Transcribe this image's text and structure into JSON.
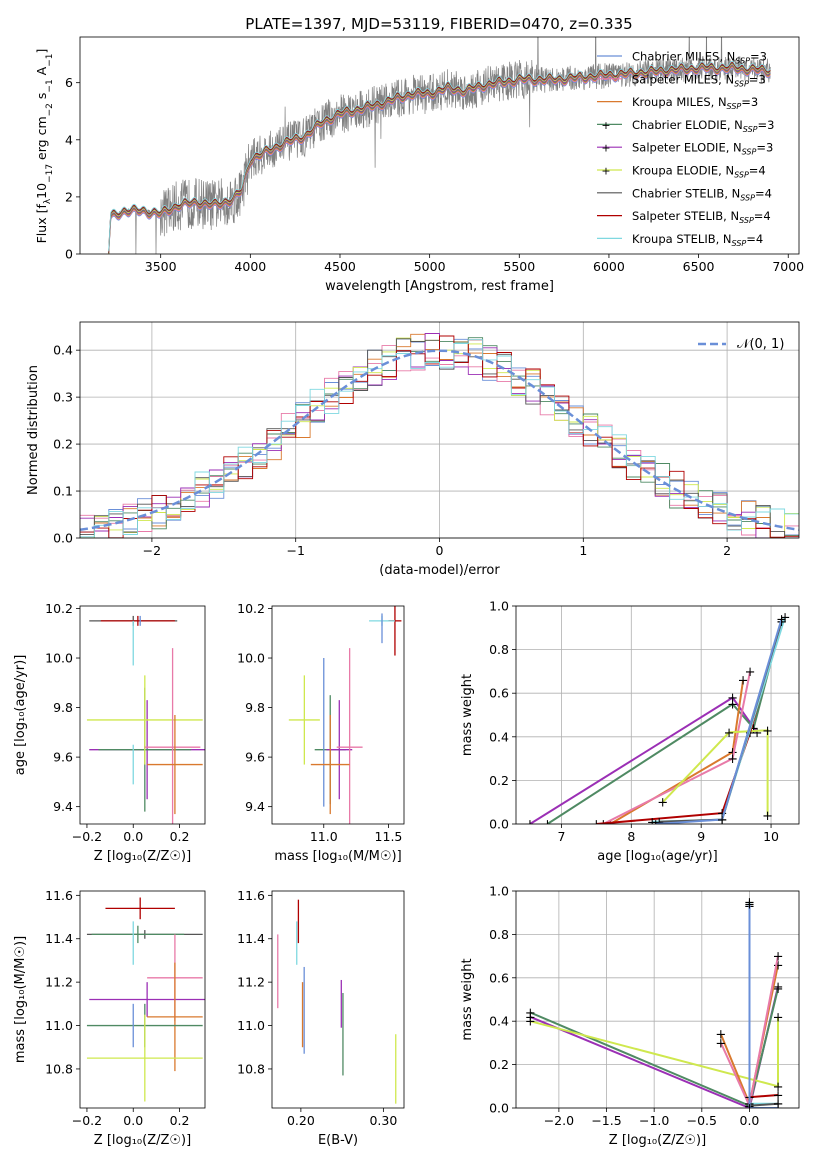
{
  "title": "PLATE=1397, MJD=53119, FIBERID=0470, z=0.335",
  "legend_models": [
    {
      "name": "Chabrier MILES",
      "nssp": "3",
      "color": "#6a8fd8"
    },
    {
      "name": "Salpeter MILES",
      "nssp": "3",
      "color": "#e87aa8"
    },
    {
      "name": "Kroupa MILES",
      "nssp": "3",
      "color": "#d9792e"
    },
    {
      "name": "Chabrier ELODIE",
      "nssp": "3",
      "color": "#4f8a63"
    },
    {
      "name": "Salpeter ELODIE",
      "nssp": "3",
      "color": "#9b2fb5"
    },
    {
      "name": "Kroupa ELODIE",
      "nssp": "4",
      "color": "#cfe84e"
    },
    {
      "name": "Chabrier STELIB",
      "nssp": "4",
      "color": "#555555"
    },
    {
      "name": "Salpeter STELIB",
      "nssp": "4",
      "color": "#b00000"
    },
    {
      "name": "Kroupa STELIB",
      "nssp": "4",
      "color": "#7fd8e0"
    }
  ],
  "chart_data": [
    {
      "id": "spectrum",
      "type": "line",
      "xlabel": "wavelength [Angstrom, rest frame]",
      "ylabel_parts": {
        "a": "Flux [f",
        "b": "λ",
        "c": "10",
        "d": "−17",
        "e": " erg cm",
        "f": "−2",
        "g": " s",
        "h": "−1",
        "i": " A",
        "j": "−1",
        "k": "]"
      },
      "xlim": [
        3050,
        7060
      ],
      "ylim": [
        0,
        7.6
      ],
      "xticks": [
        3500,
        4000,
        4500,
        5000,
        5500,
        6000,
        6500,
        7000
      ],
      "yticks": [
        0,
        2,
        4,
        6
      ],
      "data_color": "#808080",
      "continuum": [
        [
          3210,
          0
        ],
        [
          3220,
          1.3
        ],
        [
          3300,
          1.5
        ],
        [
          3400,
          1.5
        ],
        [
          3500,
          1.4
        ],
        [
          3600,
          1.7
        ],
        [
          3700,
          1.8
        ],
        [
          3800,
          1.7
        ],
        [
          3900,
          1.9
        ],
        [
          3950,
          2.2
        ],
        [
          4000,
          3.3
        ],
        [
          4100,
          3.6
        ],
        [
          4200,
          3.9
        ],
        [
          4300,
          4.1
        ],
        [
          4400,
          4.6
        ],
        [
          4500,
          4.9
        ],
        [
          4700,
          5.2
        ],
        [
          4900,
          5.6
        ],
        [
          5000,
          5.6
        ],
        [
          5100,
          5.8
        ],
        [
          5200,
          5.7
        ],
        [
          5300,
          5.9
        ],
        [
          5500,
          6.1
        ],
        [
          5700,
          6.1
        ],
        [
          5900,
          6.2
        ],
        [
          6100,
          6.3
        ],
        [
          6300,
          6.4
        ],
        [
          6500,
          6.5
        ],
        [
          6700,
          6.5
        ],
        [
          6900,
          6.4
        ]
      ]
    },
    {
      "id": "residuals",
      "type": "step",
      "xlabel": "(data-model)/error",
      "ylabel": "Normed distribution",
      "xlim": [
        -2.5,
        2.5
      ],
      "ylim": [
        0,
        0.46
      ],
      "xticks": [
        -2,
        -1,
        0,
        1,
        2
      ],
      "yticks": [
        0,
        0.1,
        0.2,
        0.3,
        0.4
      ],
      "legend": "𝒩(0, 1)"
    },
    {
      "id": "z_age",
      "type": "errorbar",
      "xlabel": "Z [log₁₀(Z/Z☉)]",
      "ylabel": "age  [log₁₀(age/yr)]",
      "xlim": [
        -0.23,
        0.31
      ],
      "ylim": [
        9.33,
        10.21
      ],
      "xticks": [
        -0.2,
        0.0,
        0.2
      ],
      "yticks": [
        9.4,
        9.6,
        9.8,
        10.0,
        10.2
      ],
      "points": [
        {
          "x": 0.0,
          "y": 10.15,
          "xerr": 0.19,
          "yerr": 0.02,
          "m": 6
        },
        {
          "x": 0.02,
          "y": 10.15,
          "xerr": 0.16,
          "yerr": 0.02,
          "m": 7
        },
        {
          "x": 0.03,
          "y": 10.15,
          "xerr": 0.0,
          "yerr": 0.02,
          "m": 0
        },
        {
          "x": 0.0,
          "y": 10.06,
          "xerr": 0.0,
          "yerr": 0.09,
          "m": 8
        },
        {
          "x": 0.06,
          "y": 9.63,
          "xerr": 0.25,
          "yerr": 0.2,
          "m": 4
        },
        {
          "x": 0.05,
          "y": 9.63,
          "xerr": 0.2,
          "yerr": 0.25,
          "m": 3
        },
        {
          "x": 0.05,
          "y": 9.75,
          "xerr": 0.25,
          "yerr": 0.18,
          "m": 5
        },
        {
          "x": 0.17,
          "y": 9.64,
          "xerr": 0.12,
          "yerr": 0.4,
          "m": 1
        },
        {
          "x": 0.18,
          "y": 9.57,
          "xerr": 0.12,
          "yerr": 0.2,
          "m": 2
        },
        {
          "x": 0.0,
          "y": 9.57,
          "xerr": 0.0,
          "yerr": 0.08,
          "m": 8
        }
      ]
    },
    {
      "id": "mass_age",
      "type": "errorbar",
      "xlabel": "mass [log₁₀(M/M☉)]",
      "ylabel": "",
      "xlim": [
        10.6,
        11.62
      ],
      "ylim": [
        9.33,
        10.21
      ],
      "xticks": [
        11.0,
        11.5
      ],
      "yticks": [
        9.4,
        9.6,
        9.8,
        10.0,
        10.2
      ],
      "points": [
        {
          "x": 11.55,
          "y": 10.15,
          "xerr": 0.05,
          "yerr": 0.14,
          "m": 7
        },
        {
          "x": 11.45,
          "y": 10.15,
          "xerr": 0.1,
          "yerr": 0.02,
          "m": 8
        },
        {
          "x": 11.45,
          "y": 10.12,
          "xerr": 0.0,
          "yerr": 0.06,
          "m": 0
        },
        {
          "x": 10.85,
          "y": 9.75,
          "xerr": 0.12,
          "yerr": 0.18,
          "m": 5
        },
        {
          "x": 11.05,
          "y": 9.63,
          "xerr": 0.12,
          "yerr": 0.22,
          "m": 3
        },
        {
          "x": 11.0,
          "y": 9.7,
          "xerr": 0.0,
          "yerr": 0.3,
          "m": 0
        },
        {
          "x": 11.12,
          "y": 9.63,
          "xerr": 0.1,
          "yerr": 0.2,
          "m": 4
        },
        {
          "x": 11.2,
          "y": 9.64,
          "xerr": 0.1,
          "yerr": 0.4,
          "m": 1
        },
        {
          "x": 11.05,
          "y": 9.57,
          "xerr": 0.15,
          "yerr": 0.2,
          "m": 2
        }
      ]
    },
    {
      "id": "age_weight",
      "type": "line",
      "xlabel": "age  [log₁₀(age/yr)]",
      "ylabel": "mass weight",
      "xlim": [
        6.35,
        10.4
      ],
      "ylim": [
        0,
        1.0
      ],
      "xticks": [
        7,
        8,
        9,
        10
      ],
      "yticks": [
        0.0,
        0.2,
        0.4,
        0.6,
        0.8,
        1.0
      ],
      "series": [
        {
          "m": 4,
          "points": [
            [
              6.55,
              0.0
            ],
            [
              9.45,
              0.58
            ],
            [
              9.8,
              0.42
            ]
          ]
        },
        {
          "m": 3,
          "points": [
            [
              6.8,
              0.0
            ],
            [
              9.45,
              0.55
            ],
            [
              9.75,
              0.44
            ],
            [
              10.15,
              0.93
            ]
          ]
        },
        {
          "m": 2,
          "points": [
            [
              7.7,
              0.0
            ],
            [
              9.45,
              0.33
            ],
            [
              9.6,
              0.66
            ]
          ]
        },
        {
          "m": 1,
          "points": [
            [
              7.6,
              0.0
            ],
            [
              9.45,
              0.3
            ],
            [
              9.7,
              0.7
            ]
          ]
        },
        {
          "m": 5,
          "points": [
            [
              8.45,
              0.1
            ],
            [
              9.4,
              0.42
            ],
            [
              9.95,
              0.43
            ],
            [
              9.95,
              0.04
            ]
          ]
        },
        {
          "m": 7,
          "points": [
            [
              7.5,
              0.0
            ],
            [
              9.3,
              0.05
            ],
            [
              9.7,
              0.42
            ],
            [
              10.15,
              0.93
            ]
          ]
        },
        {
          "m": 8,
          "points": [
            [
              8.3,
              0.01
            ],
            [
              9.3,
              0.02
            ],
            [
              10.2,
              0.95
            ]
          ]
        },
        {
          "m": 6,
          "points": [
            [
              8.4,
              0.01
            ],
            [
              9.3,
              0.02
            ],
            [
              10.15,
              0.93
            ]
          ]
        },
        {
          "m": 0,
          "points": [
            [
              8.35,
              0.0
            ],
            [
              9.3,
              0.02
            ],
            [
              10.15,
              0.94
            ]
          ]
        }
      ]
    },
    {
      "id": "z_mass",
      "type": "errorbar",
      "xlabel": "Z [log₁₀(Z/Z☉)]",
      "ylabel": "mass [log₁₀(M/M☉)]",
      "xlim": [
        -0.23,
        0.31
      ],
      "ylim": [
        10.62,
        11.62
      ],
      "xticks": [
        -0.2,
        0.0,
        0.2
      ],
      "yticks": [
        10.8,
        11.0,
        11.2,
        11.4,
        11.6
      ],
      "points": [
        {
          "x": 0.03,
          "y": 11.54,
          "xerr": 0.15,
          "yerr": 0.05,
          "m": 7
        },
        {
          "x": 0.05,
          "y": 11.42,
          "xerr": 0.25,
          "yerr": 0.02,
          "m": 6
        },
        {
          "x": 0.02,
          "y": 11.42,
          "xerr": 0.2,
          "yerr": 0.04,
          "m": 3
        },
        {
          "x": 0.0,
          "y": 11.38,
          "xerr": 0.0,
          "yerr": 0.1,
          "m": 8
        },
        {
          "x": 0.18,
          "y": 11.22,
          "xerr": 0.12,
          "yerr": 0.2,
          "m": 1
        },
        {
          "x": 0.06,
          "y": 11.12,
          "xerr": 0.25,
          "yerr": 0.08,
          "m": 4
        },
        {
          "x": 0.18,
          "y": 11.04,
          "xerr": 0.12,
          "yerr": 0.25,
          "m": 2
        },
        {
          "x": 0.05,
          "y": 11.0,
          "xerr": 0.25,
          "yerr": 0.1,
          "m": 3
        },
        {
          "x": 0.05,
          "y": 10.85,
          "xerr": 0.25,
          "yerr": 0.2,
          "m": 5
        },
        {
          "x": 0.0,
          "y": 11.0,
          "xerr": 0.0,
          "yerr": 0.1,
          "m": 0
        }
      ]
    },
    {
      "id": "ebv_mass",
      "type": "errorbar",
      "xlabel": "E(B-V)",
      "ylabel": "",
      "xlim": [
        0.165,
        0.325
      ],
      "ylim": [
        10.62,
        11.62
      ],
      "xticks": [
        0.2,
        0.3
      ],
      "yticks": [
        10.8,
        11.0,
        11.2,
        11.4,
        11.6
      ],
      "points": [
        {
          "x": 0.197,
          "y": 11.48,
          "xerr": 0,
          "yerr": 0.1,
          "m": 7
        },
        {
          "x": 0.195,
          "y": 11.38,
          "xerr": 0,
          "yerr": 0.1,
          "m": 8
        },
        {
          "x": 0.172,
          "y": 11.25,
          "xerr": 0,
          "yerr": 0.17,
          "m": 1
        },
        {
          "x": 0.204,
          "y": 11.07,
          "xerr": 0,
          "yerr": 0.2,
          "m": 0
        },
        {
          "x": 0.202,
          "y": 11.05,
          "xerr": 0,
          "yerr": 0.15,
          "m": 2
        },
        {
          "x": 0.249,
          "y": 11.1,
          "xerr": 0,
          "yerr": 0.11,
          "m": 4
        },
        {
          "x": 0.251,
          "y": 10.96,
          "xerr": 0,
          "yerr": 0.19,
          "m": 3
        },
        {
          "x": 0.315,
          "y": 10.8,
          "xerr": 0,
          "yerr": 0.16,
          "m": 5
        }
      ]
    },
    {
      "id": "z_weight",
      "type": "line",
      "xlabel": "Z [log₁₀(Z/Z☉)]",
      "ylabel": "mass weight",
      "xlim": [
        -2.45,
        0.52
      ],
      "ylim": [
        0,
        1.0
      ],
      "xticks": [
        -2.0,
        -1.5,
        -1.0,
        -0.5,
        0.0
      ],
      "yticks": [
        0.0,
        0.2,
        0.4,
        0.6,
        0.8,
        1.0
      ],
      "series": [
        {
          "m": 4,
          "points": [
            [
              -2.3,
              0.42
            ],
            [
              0.0,
              0.0
            ],
            [
              0.3,
              0.56
            ]
          ]
        },
        {
          "m": 3,
          "points": [
            [
              -2.3,
              0.44
            ],
            [
              0.0,
              0.01
            ],
            [
              0.3,
              0.55
            ]
          ]
        },
        {
          "m": 5,
          "points": [
            [
              -2.3,
              0.4
            ],
            [
              0.3,
              0.1
            ],
            [
              0.3,
              0.42
            ]
          ]
        },
        {
          "m": 2,
          "points": [
            [
              -0.3,
              0.34
            ],
            [
              0.0,
              0.02
            ],
            [
              0.3,
              0.66
            ]
          ]
        },
        {
          "m": 1,
          "points": [
            [
              -0.3,
              0.3
            ],
            [
              0.0,
              0.01
            ],
            [
              0.3,
              0.7
            ]
          ]
        },
        {
          "m": 7,
          "points": [
            [
              0.0,
              0.93
            ],
            [
              0.0,
              0.05
            ],
            [
              0.3,
              0.06
            ]
          ]
        },
        {
          "m": 8,
          "points": [
            [
              0.0,
              0.95
            ],
            [
              0.0,
              0.02
            ],
            [
              0.3,
              0.02
            ]
          ]
        },
        {
          "m": 6,
          "points": [
            [
              0.0,
              0.93
            ],
            [
              0.0,
              0.01
            ],
            [
              0.3,
              0.02
            ]
          ]
        },
        {
          "m": 0,
          "points": [
            [
              0.0,
              0.94
            ],
            [
              0.0,
              0.0
            ],
            [
              0.3,
              0.0
            ]
          ]
        }
      ]
    }
  ]
}
